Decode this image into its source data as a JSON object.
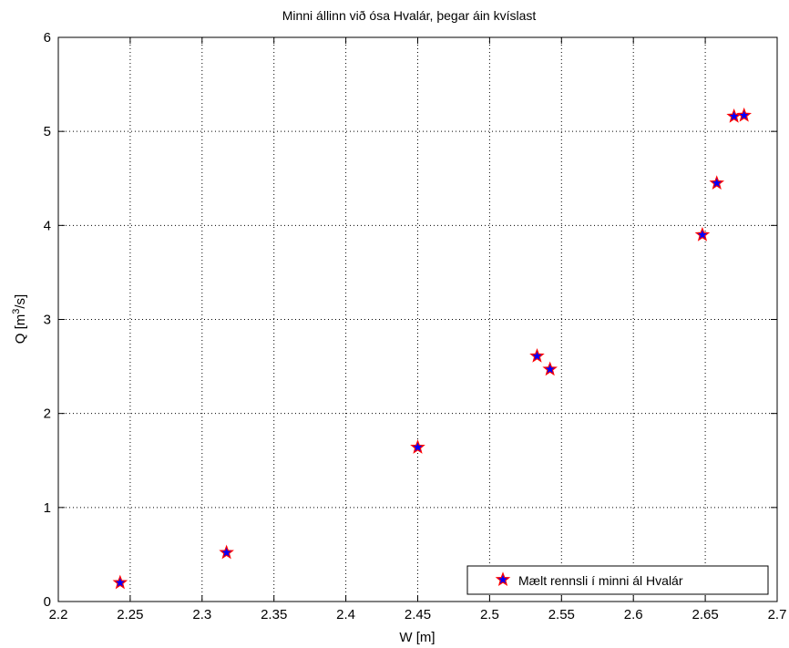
{
  "chart_data": {
    "type": "scatter",
    "title": "Minni állinn við ósa Hvalár, þegar áin kvíslast",
    "xlabel": "W [m]",
    "ylabel_main": "Q [m",
    "ylabel_sup": "3",
    "ylabel_tail": "/s]",
    "xlim": [
      2.2,
      2.7
    ],
    "ylim": [
      0,
      6
    ],
    "xticks": [
      "2.2",
      "2.25",
      "2.3",
      "2.35",
      "2.4",
      "2.45",
      "2.5",
      "2.55",
      "2.6",
      "2.65",
      "2.7"
    ],
    "yticks": [
      "0",
      "1",
      "2",
      "3",
      "4",
      "5",
      "6"
    ],
    "grid": true,
    "legend_position": "bottom-right",
    "series": [
      {
        "name": "Mælt rennsli í minni ál Hvalár",
        "marker": "star",
        "marker_fill": "#0000ff",
        "marker_edge": "#ff0000",
        "points": [
          {
            "x": 2.243,
            "y": 0.2
          },
          {
            "x": 2.317,
            "y": 0.52
          },
          {
            "x": 2.45,
            "y": 1.64
          },
          {
            "x": 2.533,
            "y": 2.61
          },
          {
            "x": 2.542,
            "y": 2.47
          },
          {
            "x": 2.648,
            "y": 3.9
          },
          {
            "x": 2.658,
            "y": 4.45
          },
          {
            "x": 2.67,
            "y": 5.16
          },
          {
            "x": 2.677,
            "y": 5.17
          }
        ]
      }
    ]
  }
}
